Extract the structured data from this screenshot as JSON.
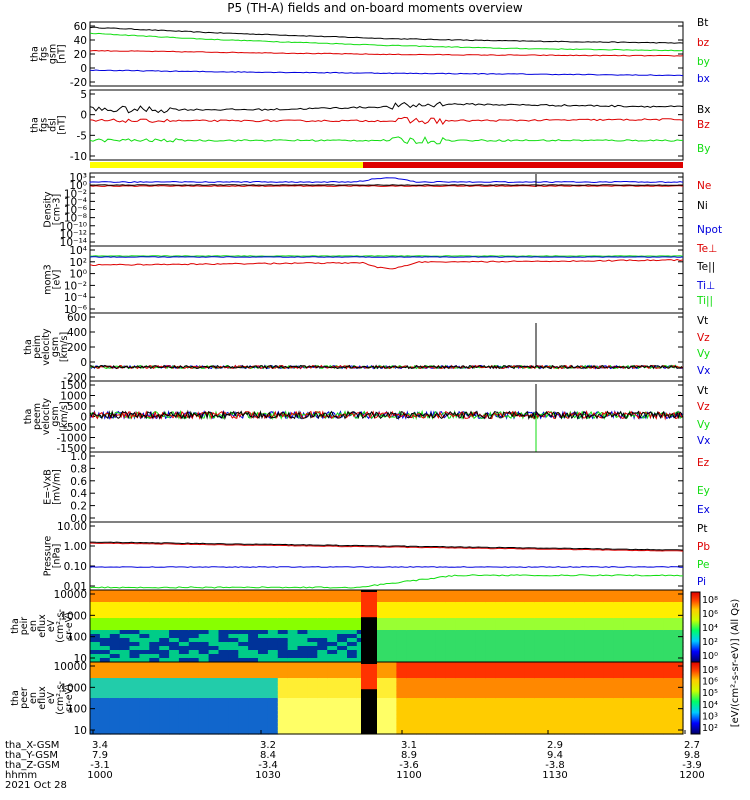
{
  "colors": {
    "black": "#000000",
    "red": "#dd0000",
    "green": "#11dd11",
    "blue": "#0000dd",
    "yellow": "#ffff00"
  },
  "chart_data": {
    "type": "line",
    "title": "P5 (TH-A) fields and on-board moments overview",
    "panels": [
      {
        "id": "fgs_gsm",
        "ylabel": [
          "tha",
          "fgs",
          "gsm",
          "[nT]"
        ],
        "ylim": [
          -20,
          65
        ],
        "yticks": [
          "60",
          "40",
          "20",
          "0",
          "-20"
        ],
        "legend": [
          {
            "name": "Bt",
            "color": "black"
          },
          {
            "name": "bz",
            "color": "red"
          },
          {
            "name": "by",
            "color": "green"
          },
          {
            "name": "bx",
            "color": "blue"
          }
        ],
        "series": [
          {
            "name": "Bt",
            "color": "black",
            "x": [
              0,
              0.2,
              0.5,
              0.7,
              1
            ],
            "y": [
              58,
              51,
              43,
              40,
              37
            ]
          },
          {
            "name": "by",
            "color": "green",
            "x": [
              0,
              0.2,
              0.5,
              0.7,
              1
            ],
            "y": [
              50,
              42,
              34,
              30,
              27
            ]
          },
          {
            "name": "bz",
            "color": "red",
            "x": [
              0,
              0.2,
              0.5,
              0.7,
              1
            ],
            "y": [
              27,
              25,
              22,
              21,
              20
            ]
          },
          {
            "name": "bx",
            "color": "blue",
            "x": [
              0,
              0.2,
              0.5,
              0.7,
              1
            ],
            "y": [
              1,
              -1,
              -3,
              -4,
              -6
            ]
          }
        ]
      },
      {
        "id": "fgs_dsl",
        "ylabel": [
          "tha",
          "fgs",
          "dsl",
          "[nT]"
        ],
        "ylim": [
          -15,
          10
        ],
        "yticks": [
          "5",
          "0",
          "-5",
          "-10"
        ],
        "legend": [
          {
            "name": "Bx",
            "color": "black"
          },
          {
            "name": "Bz",
            "color": "red"
          },
          {
            "name": "By",
            "color": "green"
          }
        ],
        "series": [
          {
            "name": "Bx",
            "color": "black",
            "x": [
              0,
              0.3,
              0.5,
              0.6,
              1
            ],
            "y": [
              3,
              3,
              4,
              5,
              4
            ]
          },
          {
            "name": "Bz",
            "color": "red",
            "x": [
              0,
              0.3,
              0.5,
              0.6,
              1
            ],
            "y": [
              -1,
              -1,
              -1,
              -1,
              -0.5
            ]
          },
          {
            "name": "By",
            "color": "green",
            "x": [
              0,
              0.3,
              0.5,
              0.6,
              1
            ],
            "y": [
              -8,
              -8,
              -8,
              -8,
              -8
            ]
          }
        ]
      },
      {
        "id": "density",
        "ylabel": [
          "Density",
          "[cm-3]"
        ],
        "yticks": [
          "10³",
          "10⁰",
          "10⁻²",
          "10⁻⁴",
          "10⁻⁶",
          "10⁻⁸",
          "10⁻¹⁰",
          "10⁻¹²",
          "10⁻¹⁴"
        ],
        "legend": [
          {
            "name": "Ne",
            "color": "red"
          },
          {
            "name": "Ni",
            "color": "black"
          },
          {
            "name": "Npot",
            "color": "blue"
          }
        ]
      },
      {
        "id": "temperature",
        "ylabel": [
          "mom3",
          "[eV]"
        ],
        "yticks": [
          "10⁴",
          "10²",
          "10⁰",
          "10⁻²",
          "10⁻⁴",
          "10⁻⁶"
        ],
        "legend": [
          {
            "name": "Te⊥",
            "color": "red"
          },
          {
            "name": "Te||",
            "color": "black"
          },
          {
            "name": "Ti⊥",
            "color": "blue"
          },
          {
            "name": "Ti||",
            "color": "green"
          }
        ]
      },
      {
        "id": "peim_velocity",
        "ylabel": [
          "tha",
          "peim",
          "velocity",
          "gsm",
          "[km/s]"
        ],
        "ylim": [
          -200,
          700
        ],
        "yticks": [
          "600",
          "400",
          "200",
          "0",
          "-200"
        ],
        "legend": [
          {
            "name": "Vt",
            "color": "black"
          },
          {
            "name": "Vz",
            "color": "red"
          },
          {
            "name": "Vy",
            "color": "green"
          },
          {
            "name": "Vx",
            "color": "blue"
          }
        ]
      },
      {
        "id": "peem_velocity",
        "ylabel": [
          "tha",
          "peem",
          "velocity",
          "gsm",
          "[km/s]"
        ],
        "ylim": [
          -1500,
          1500
        ],
        "yticks": [
          "1500",
          "1000",
          "500",
          "0",
          "-500",
          "-1000",
          "-1500"
        ],
        "legend": [
          {
            "name": "Vt",
            "color": "black"
          },
          {
            "name": "Vz",
            "color": "red"
          },
          {
            "name": "Vy",
            "color": "green"
          },
          {
            "name": "Vx",
            "color": "blue"
          }
        ]
      },
      {
        "id": "efield",
        "ylabel": [
          "E=-VxB",
          "[mV/m]"
        ],
        "ylim": [
          0,
          1
        ],
        "yticks": [
          "1.0",
          "0.8",
          "0.6",
          "0.4",
          "0.2",
          "0.0"
        ],
        "legend": [
          {
            "name": "Ez",
            "color": "red"
          },
          {
            "name": "Ey",
            "color": "green"
          },
          {
            "name": "Ex",
            "color": "blue"
          }
        ]
      },
      {
        "id": "pressure",
        "ylabel": [
          "Pressure",
          "[nPa]"
        ],
        "yticks": [
          "10.00",
          "1.00",
          "0.10",
          "0.01"
        ],
        "legend": [
          {
            "name": "Pt",
            "color": "black"
          },
          {
            "name": "Pb",
            "color": "red"
          },
          {
            "name": "Pe",
            "color": "green"
          },
          {
            "name": "Pi",
            "color": "blue"
          }
        ]
      },
      {
        "id": "peir_spec",
        "ylabel": [
          "tha",
          "peir",
          "en",
          "eflux",
          "eV",
          "(cm²-s-",
          "sr-eV)"
        ],
        "yticks": [
          "10000",
          "1000",
          "100",
          "10"
        ]
      },
      {
        "id": "peer_spec",
        "ylabel": [
          "tha",
          "peer",
          "en",
          "eflux",
          "eV",
          "(cm²-s-",
          "sr-eV)"
        ],
        "yticks": [
          "10000",
          "1000",
          "100",
          "10"
        ]
      }
    ],
    "colorbar": {
      "label": "[eV/(cm²-s-sr-eV)] (All Qs)",
      "ticks_top": [
        "10⁸",
        "10⁶",
        "10⁴",
        "10²",
        "10⁰"
      ],
      "ticks_bottom": [
        "10⁸",
        "10⁶",
        "10⁵",
        "10⁴",
        "10³",
        "10²"
      ]
    },
    "xaxis_rows": [
      {
        "label": "tha_X-GSM",
        "values": [
          "3.4",
          "3.2",
          "3.1",
          "2.9",
          "2.7"
        ]
      },
      {
        "label": "tha_Y-GSM",
        "values": [
          "7.9",
          "8.4",
          "8.9",
          "9.4",
          "9.8"
        ]
      },
      {
        "label": "tha_Z-GSM",
        "values": [
          "-3.1",
          "-3.4",
          "-3.6",
          "-3.8",
          "-3.9"
        ]
      },
      {
        "label": "hhmm",
        "values": [
          "1000",
          "1030",
          "1100",
          "1130",
          "1200"
        ]
      }
    ],
    "date": "2021 Oct 28"
  }
}
